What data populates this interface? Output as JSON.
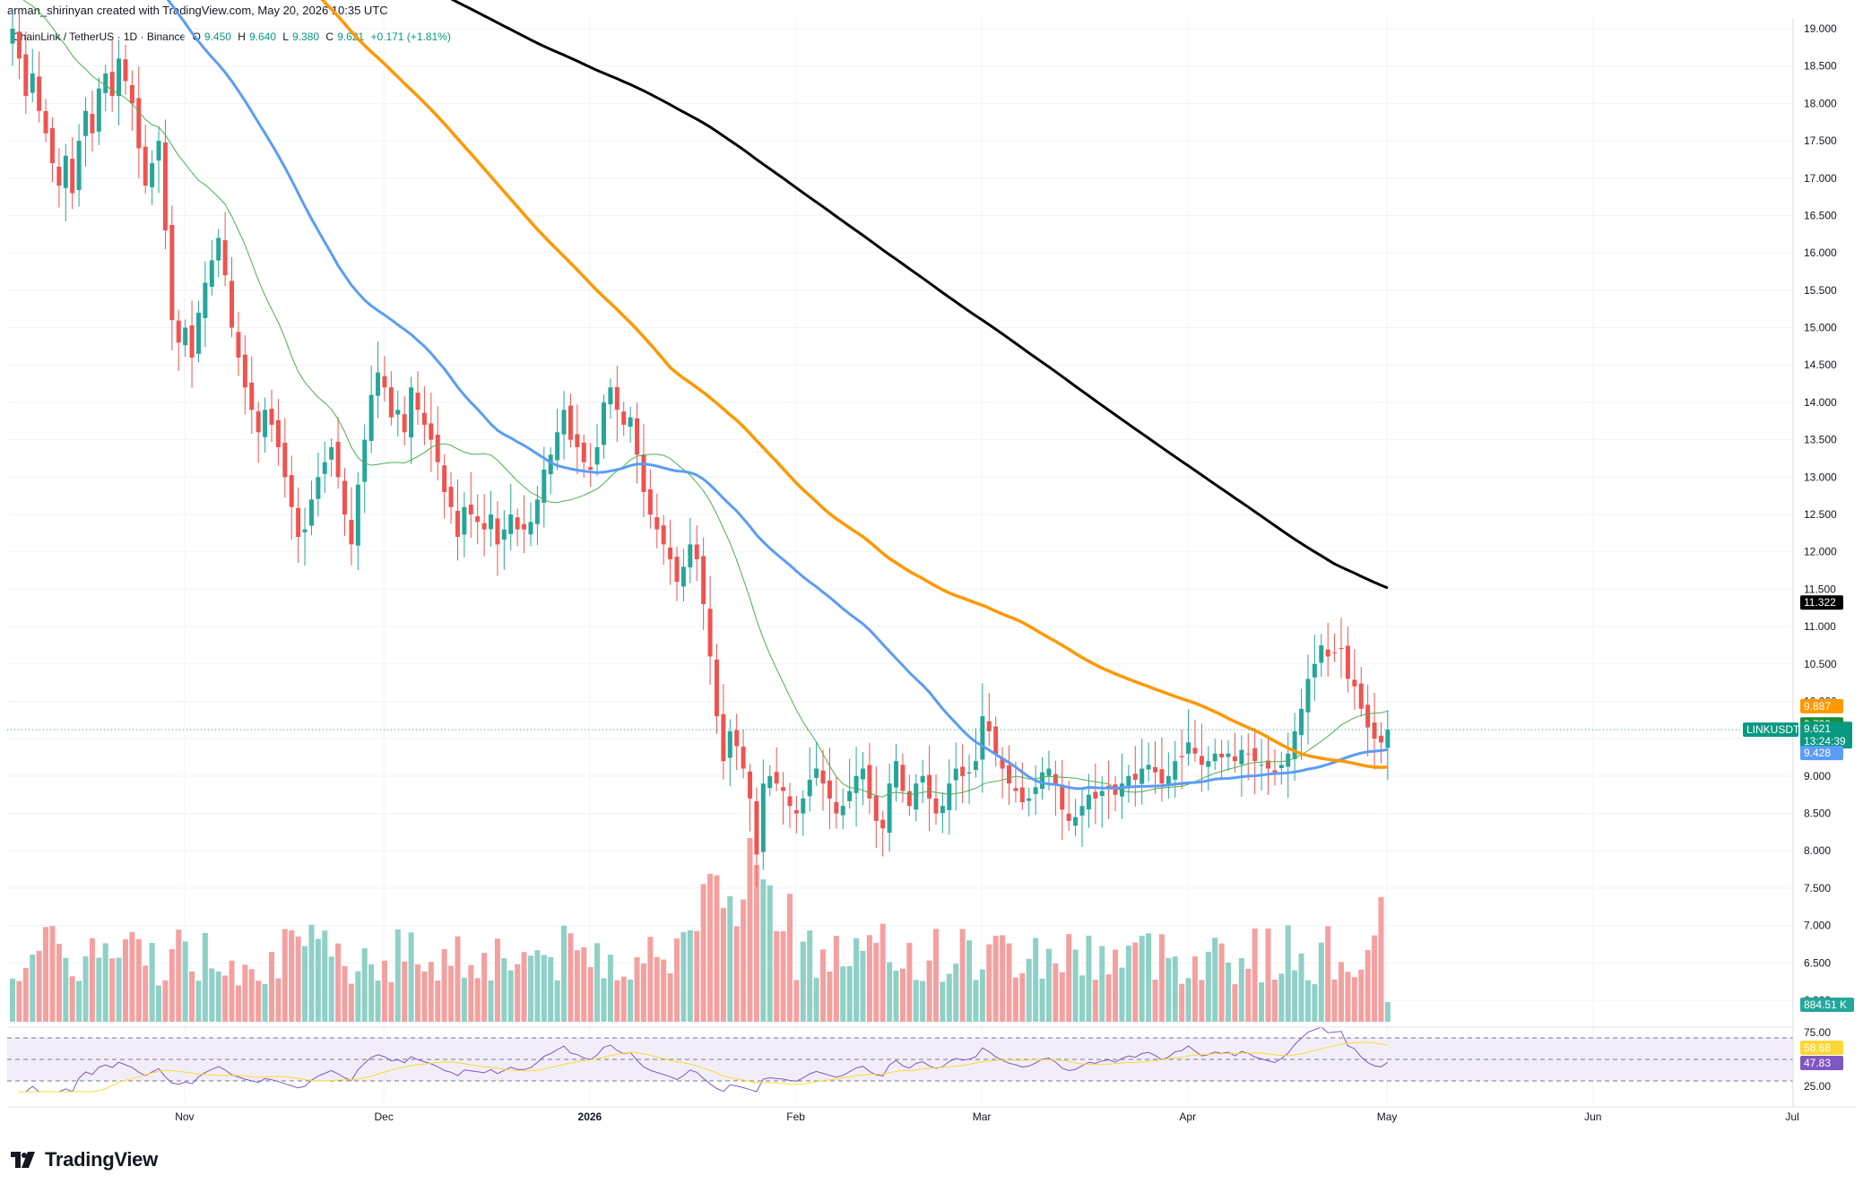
{
  "header": {
    "text": "arman_shirinyan created with TradingView.com, May 20, 2026 10:35 UTC"
  },
  "legend": {
    "symbol": "ChainLink / TetherUS · 1D · Binance",
    "open_label": "O",
    "open": "9.450",
    "high_label": "H",
    "high": "9.640",
    "low_label": "L",
    "low": "9.380",
    "close_label": "C",
    "close": "9.621",
    "change": "+0.171 (+1.81%)"
  },
  "branding": {
    "name": "TradingView"
  },
  "tags": {
    "ma200": "11.322",
    "ma100": "9.887",
    "ma20": "9.739",
    "symbol": "LINKUSDT",
    "price": "9.621",
    "countdown": "13:24:39",
    "ma50": "9.428",
    "volume": "884.51 K",
    "rsi_ma": "58.68",
    "rsi": "47.83"
  },
  "colors": {
    "up": "#26a69a",
    "down": "#ef5350",
    "vol_up": "#8fd0c7",
    "vol_down": "#f3a1a0",
    "ma20": "#4caf50",
    "ma50": "#5b9cf6",
    "ma100": "#ff9800",
    "ma200": "#000000",
    "rsi": "#7e57c2",
    "rsi_ma": "#fdd835",
    "grid": "#f0f3fa"
  },
  "chart_data": [
    {
      "type": "candlestick",
      "title": "ChainLink / TetherUS · 1D · Binance",
      "x_ticks": [
        "Nov",
        "Dec",
        "2026",
        "Feb",
        "Mar",
        "Apr",
        "May",
        "Jun",
        "Jul"
      ],
      "y_ticks": [
        "19.000",
        "18.500",
        "18.000",
        "17.500",
        "17.000",
        "16.500",
        "16.000",
        "15.500",
        "15.000",
        "14.500",
        "14.000",
        "13.500",
        "13.000",
        "12.500",
        "12.000",
        "11.500",
        "11.000",
        "10.500",
        "10.000",
        "9.500",
        "9.000",
        "8.500",
        "8.000",
        "7.500",
        "7.000",
        "6.500",
        "6.000"
      ],
      "ylim": [
        5.9,
        19.1
      ],
      "closes": [
        19.0,
        18.6,
        18.1,
        18.4,
        17.9,
        17.6,
        17.2,
        16.9,
        17.3,
        16.8,
        17.5,
        17.9,
        17.6,
        18.2,
        18.4,
        18.1,
        18.6,
        18.3,
        18.0,
        17.4,
        16.9,
        17.2,
        17.5,
        16.3,
        15.1,
        14.8,
        15.0,
        14.6,
        15.2,
        15.6,
        15.9,
        16.2,
        15.7,
        15.0,
        14.6,
        14.2,
        13.9,
        13.6,
        13.9,
        13.7,
        13.4,
        13.0,
        12.6,
        12.2,
        12.3,
        12.7,
        13.0,
        13.2,
        13.4,
        13.0,
        12.5,
        12.1,
        12.9,
        13.5,
        14.1,
        14.4,
        14.2,
        13.8,
        13.9,
        13.6,
        14.2,
        13.9,
        13.7,
        13.5,
        13.2,
        12.8,
        12.6,
        12.2,
        12.6,
        12.5,
        12.4,
        12.3,
        12.5,
        12.1,
        12.3,
        12.5,
        12.3,
        12.3,
        12.4,
        12.7,
        13.1,
        13.3,
        13.6,
        13.9,
        13.5,
        13.4,
        13.2,
        13.1,
        13.4,
        14.0,
        14.2,
        13.9,
        13.7,
        13.8,
        13.3,
        12.8,
        12.5,
        12.3,
        12.1,
        11.9,
        11.6,
        11.8,
        12.1,
        11.9,
        11.3,
        10.6,
        9.8,
        9.2,
        9.6,
        9.4,
        9.1,
        8.7,
        7.95,
        8.9,
        9.0,
        8.9,
        8.8,
        8.6,
        8.5,
        8.7,
        8.95,
        9.1,
        8.9,
        8.7,
        8.5,
        8.6,
        8.8,
        9.0,
        9.1,
        8.7,
        8.4,
        8.3,
        8.9,
        9.2,
        8.8,
        8.6,
        8.9,
        9.0,
        8.7,
        8.5,
        8.6,
        8.9,
        9.1,
        9.0,
        9.05,
        9.2,
        9.8,
        9.6,
        9.3,
        9.1,
        8.9,
        8.8,
        8.65,
        8.7,
        8.85,
        9.05,
        9.1,
        8.9,
        8.55,
        8.4,
        8.45,
        8.6,
        8.75,
        8.7,
        8.8,
        8.85,
        8.75,
        8.9,
        9.0,
        8.95,
        9.1,
        9.15,
        9.05,
        8.9,
        9.0,
        9.2,
        9.25,
        9.45,
        9.3,
        9.15,
        9.2,
        9.3,
        9.25,
        9.3,
        9.2,
        9.35,
        9.3,
        9.2,
        9.15,
        9.1,
        9.05,
        9.15,
        9.3,
        9.6,
        9.9,
        10.3,
        10.5,
        10.75,
        10.6,
        10.65,
        10.7,
        10.3,
        10.2,
        9.9,
        9.65,
        9.5,
        9.45,
        9.621
      ],
      "series": [
        {
          "name": "MA 20",
          "last": 9.739
        },
        {
          "name": "MA 50",
          "last": 9.428
        },
        {
          "name": "MA 100",
          "last": 9.887
        },
        {
          "name": "MA 200",
          "last": 11.322
        }
      ],
      "last_price": 9.621,
      "grid": true
    },
    {
      "type": "bar",
      "title": "Volume",
      "last": "884.51 K"
    },
    {
      "type": "line",
      "title": "RSI",
      "y_ticks": [
        "75.00",
        "25.00"
      ],
      "ylim": [
        20,
        80
      ],
      "bands": [
        70,
        50,
        30
      ],
      "rsi_last": 47.83,
      "rsi_ma_last": 58.68
    }
  ]
}
